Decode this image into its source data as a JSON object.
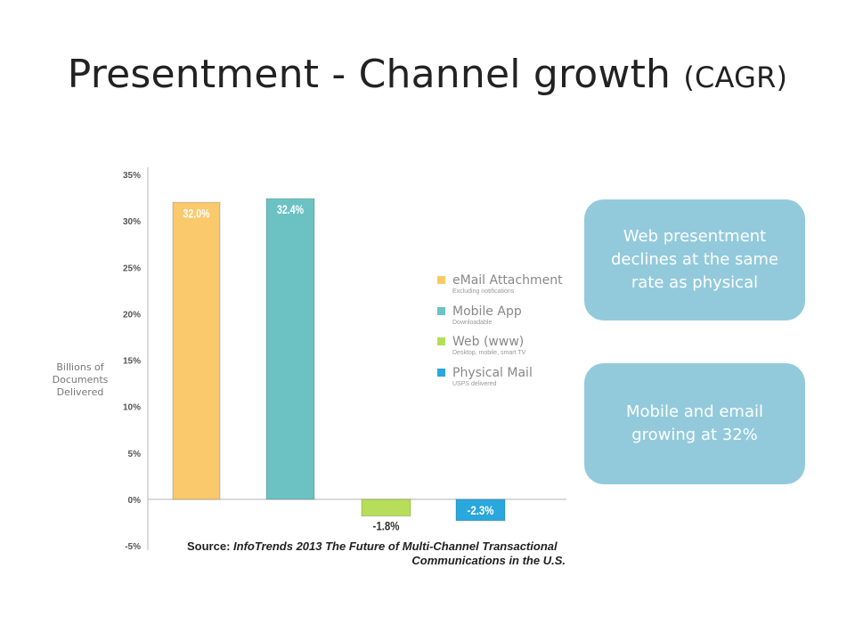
{
  "slide": {
    "title": "Presentment - Channel growth",
    "title_suffix": "(CAGR)"
  },
  "callouts": [
    {
      "text": "Web presentment declines at the same rate as physical"
    },
    {
      "text": "Mobile and email growing at 32%"
    }
  ],
  "source": {
    "label": "Source:",
    "line1": "InfoTrends 2013 The Future of Multi-Channel Transactional",
    "line2": "Communications in the U.S."
  },
  "chart_data": {
    "type": "bar",
    "ylabel": "Billions of Documents Delivered",
    "ylim": [
      -5,
      35
    ],
    "yticks": [
      35,
      30,
      25,
      20,
      15,
      10,
      5,
      0,
      -5
    ],
    "ytick_labels": [
      "35%",
      "30%",
      "25%",
      "20%",
      "15%",
      "10%",
      "5%",
      "0%",
      "-5%"
    ],
    "categories": [
      "eMail Attachment",
      "Mobile App",
      "Web (www)",
      "Physical Mail"
    ],
    "values": [
      32.0,
      32.4,
      -1.8,
      -2.3
    ],
    "data_labels": [
      "32.0%",
      "32.4%",
      "-1.8%",
      "-2.3%"
    ],
    "legend": [
      {
        "name": "eMail Attachment",
        "sub": "Excluding notifications",
        "color": "#f9c96c"
      },
      {
        "name": "Mobile App",
        "sub": "Downloadable",
        "color": "#6cc2c3"
      },
      {
        "name": "Web (www)",
        "sub": "Desktop, mobile, smart TV",
        "color": "#b6de5a"
      },
      {
        "name": "Physical Mail",
        "sub": "USPS delivered",
        "color": "#2aa7dc"
      }
    ],
    "legend_position": "right",
    "grid": false
  }
}
